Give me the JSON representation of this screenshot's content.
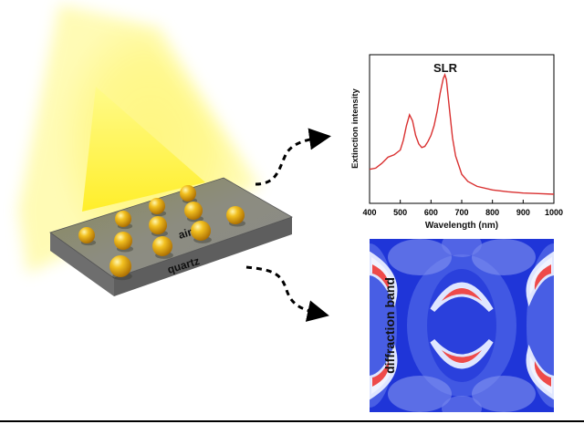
{
  "substrate": {
    "top_label": "air",
    "bottom_label": "quartz"
  },
  "chart_data": {
    "type": "line",
    "title": "",
    "annotation": "SLR",
    "xlabel": "Wavelength (nm)",
    "ylabel": "Extinction intensity",
    "xlim": [
      400,
      1000
    ],
    "xticks": [
      400,
      500,
      600,
      700,
      800,
      900,
      1000
    ],
    "yticks": [],
    "grid": false,
    "line_color": "#d93030",
    "series": [
      {
        "x": [
          400,
          420,
          440,
          460,
          480,
          500,
          510,
          520,
          530,
          540,
          550,
          560,
          570,
          580,
          590,
          600,
          610,
          620,
          630,
          640,
          645,
          650,
          660,
          670,
          680,
          700,
          720,
          750,
          800,
          850,
          900,
          950,
          1000
        ],
        "y": [
          0.22,
          0.23,
          0.27,
          0.32,
          0.34,
          0.38,
          0.46,
          0.58,
          0.67,
          0.62,
          0.5,
          0.43,
          0.4,
          0.41,
          0.45,
          0.5,
          0.58,
          0.7,
          0.85,
          0.97,
          1.0,
          0.96,
          0.72,
          0.48,
          0.33,
          0.18,
          0.12,
          0.08,
          0.05,
          0.035,
          0.025,
          0.02,
          0.015
        ]
      }
    ]
  },
  "field_map": {
    "label": "diffraction band"
  }
}
